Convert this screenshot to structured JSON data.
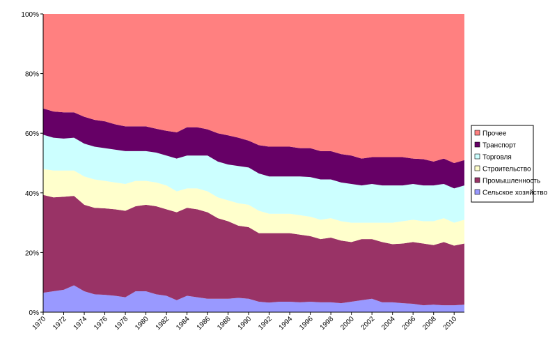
{
  "chart_data": {
    "type": "stacked_area_100",
    "x": [
      1970,
      1971,
      1972,
      1973,
      1974,
      1975,
      1976,
      1977,
      1978,
      1979,
      1980,
      1981,
      1982,
      1983,
      1984,
      1985,
      1986,
      1987,
      1988,
      1989,
      1990,
      1991,
      1992,
      1993,
      1994,
      1995,
      1996,
      1997,
      1998,
      1999,
      2000,
      2001,
      2002,
      2003,
      2004,
      2005,
      2006,
      2007,
      2008,
      2009,
      2010,
      2011
    ],
    "xlim": [
      1970,
      2011
    ],
    "xticks": [
      1970,
      1972,
      1974,
      1976,
      1978,
      1980,
      1982,
      1984,
      1986,
      1988,
      1990,
      1992,
      1994,
      1996,
      1998,
      2000,
      2002,
      2004,
      2006,
      2008,
      2010
    ],
    "ylim": [
      0,
      100
    ],
    "yticks": [
      {
        "value": 0,
        "label": "0%"
      },
      {
        "value": 20,
        "label": "20%"
      },
      {
        "value": 40,
        "label": "40%"
      },
      {
        "value": 60,
        "label": "60%"
      },
      {
        "value": 80,
        "label": "80%"
      },
      {
        "value": 100,
        "label": "100%"
      }
    ],
    "grid": false,
    "legend": "right",
    "series": [
      {
        "name": "Сельское хозяйство",
        "color": "#9999ff",
        "values": [
          6.5,
          7,
          7.5,
          9,
          7,
          6,
          5.8,
          5.5,
          5,
          7,
          7,
          6,
          5.5,
          4,
          5.5,
          5,
          4.5,
          4.5,
          4.5,
          4.8,
          4.5,
          3.5,
          3.2,
          3.5,
          3.5,
          3.3,
          3.5,
          3.3,
          3.3,
          3,
          3.5,
          4,
          4.5,
          3.3,
          3.3,
          3,
          2.8,
          2.3,
          2.5,
          2.3,
          2.3,
          2.5
        ]
      },
      {
        "name": "Промышленность",
        "color": "#993366",
        "values": [
          32.8,
          31.5,
          31.2,
          30,
          29,
          29,
          29,
          29,
          29,
          28.5,
          29,
          29.5,
          29,
          29.5,
          29.5,
          29.5,
          29,
          27,
          26,
          24.2,
          24,
          23,
          23.3,
          23,
          23,
          22.7,
          22,
          21.2,
          21.7,
          21,
          20,
          20.5,
          20,
          20.2,
          19.5,
          20,
          20.7,
          20.7,
          20,
          21.2,
          20,
          20.5
        ]
      },
      {
        "name": "Строительство",
        "color": "#ffffcc",
        "values": [
          8.7,
          9,
          8.8,
          8.5,
          9.5,
          9.5,
          9.2,
          9,
          9,
          8.5,
          8,
          8,
          8,
          7,
          6.5,
          7,
          7,
          7,
          7,
          7.5,
          7.5,
          7.5,
          6.5,
          6.5,
          6.5,
          6.5,
          6.5,
          6.5,
          6.5,
          6.5,
          6.5,
          5.5,
          5.5,
          6.5,
          7.2,
          7.5,
          7.5,
          7.5,
          8,
          8,
          7.7,
          8
        ]
      },
      {
        "name": "Торговля",
        "color": "#ccffff",
        "values": [
          11.5,
          11,
          10.7,
          11,
          11,
          11,
          11,
          11,
          11,
          10,
          10,
          10,
          10,
          11,
          11,
          11,
          12,
          12,
          12,
          12.5,
          12.5,
          12.5,
          12.5,
          12.5,
          12.5,
          13,
          13.3,
          13.5,
          13,
          13,
          13,
          12.5,
          13,
          12.5,
          12.5,
          12,
          12,
          12,
          12,
          11.5,
          11.5,
          11.5
        ]
      },
      {
        "name": "Транспорт",
        "color": "#660066",
        "values": [
          8.8,
          8.8,
          8.8,
          8.5,
          9,
          9,
          9,
          8.5,
          8.3,
          8.3,
          8.3,
          8,
          8.3,
          8.8,
          9.5,
          9.5,
          8.8,
          9.5,
          9.8,
          9.5,
          9,
          9.5,
          10,
          10,
          10,
          9.5,
          9.7,
          9.5,
          9.5,
          9.5,
          9.5,
          9,
          9,
          9.5,
          9.5,
          9.5,
          8.5,
          8.8,
          8,
          8.5,
          8.5,
          8.5
        ]
      },
      {
        "name": "Прочее",
        "color": "#ff8080",
        "values": [
          31.7,
          32.7,
          33,
          33,
          34.5,
          35.5,
          36,
          37,
          37.7,
          37.7,
          37.7,
          38.5,
          39.2,
          39.7,
          38,
          38,
          38.7,
          40,
          40.7,
          41.5,
          42.5,
          44,
          44.5,
          44.5,
          44.5,
          45,
          45,
          46,
          46,
          47,
          47.5,
          48.5,
          48,
          48,
          48,
          48,
          48.5,
          48.7,
          49.5,
          48.5,
          50,
          49
        ]
      }
    ]
  }
}
